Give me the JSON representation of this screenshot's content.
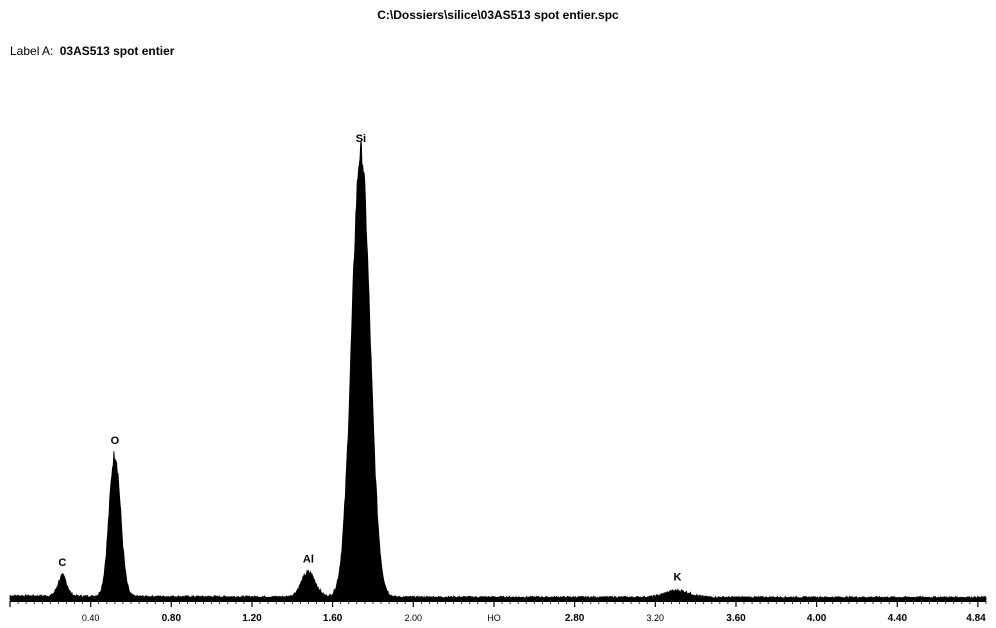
{
  "header": {
    "file_path": "C:\\Dossiers\\silice\\03AS513 spot entier.spc",
    "label_key": "Label A:",
    "label_value": "03AS513 spot entier"
  },
  "chart_data": {
    "type": "line",
    "title": "C:\\Dossiers\\silice\\03AS513 spot entier.spc",
    "subtitle": "Label A: 03AS513 spot entier",
    "xlabel": "",
    "ylabel": "",
    "xlim": [
      0.0,
      4.84
    ],
    "ylim": [
      0,
      100
    ],
    "grid": false,
    "x_tick_labels": [
      {
        "value": 0.4,
        "text": "0.40",
        "weight": "small"
      },
      {
        "value": 0.8,
        "text": "0.80",
        "weight": "bold"
      },
      {
        "value": 1.2,
        "text": "1.20",
        "weight": "bold"
      },
      {
        "value": 1.6,
        "text": "1.60",
        "weight": "bold"
      },
      {
        "value": 2.0,
        "text": "2.00",
        "weight": "small"
      },
      {
        "value": 2.4,
        "text": "HO",
        "weight": "small"
      },
      {
        "value": 2.8,
        "text": "2.80",
        "weight": "bold"
      },
      {
        "value": 3.2,
        "text": "3.20",
        "weight": "small"
      },
      {
        "value": 3.6,
        "text": "3.60",
        "weight": "bold"
      },
      {
        "value": 4.0,
        "text": "4.00",
        "weight": "bold"
      },
      {
        "value": 4.4,
        "text": "4.40",
        "weight": "bold"
      },
      {
        "value": 4.84,
        "text": "4.84",
        "weight": "bold"
      }
    ],
    "peaks": [
      {
        "label": "C",
        "x": 0.26,
        "height": 4.5,
        "width": 0.022
      },
      {
        "label": "O",
        "x": 0.52,
        "height": 32.0,
        "width": 0.028
      },
      {
        "label": "Al",
        "x": 1.48,
        "height": 5.5,
        "width": 0.035
      },
      {
        "label": "Si",
        "x": 1.74,
        "height": 100.0,
        "width": 0.045
      },
      {
        "label": "K",
        "x": 3.31,
        "height": 1.5,
        "width": 0.06
      }
    ],
    "baseline": 0.6
  }
}
